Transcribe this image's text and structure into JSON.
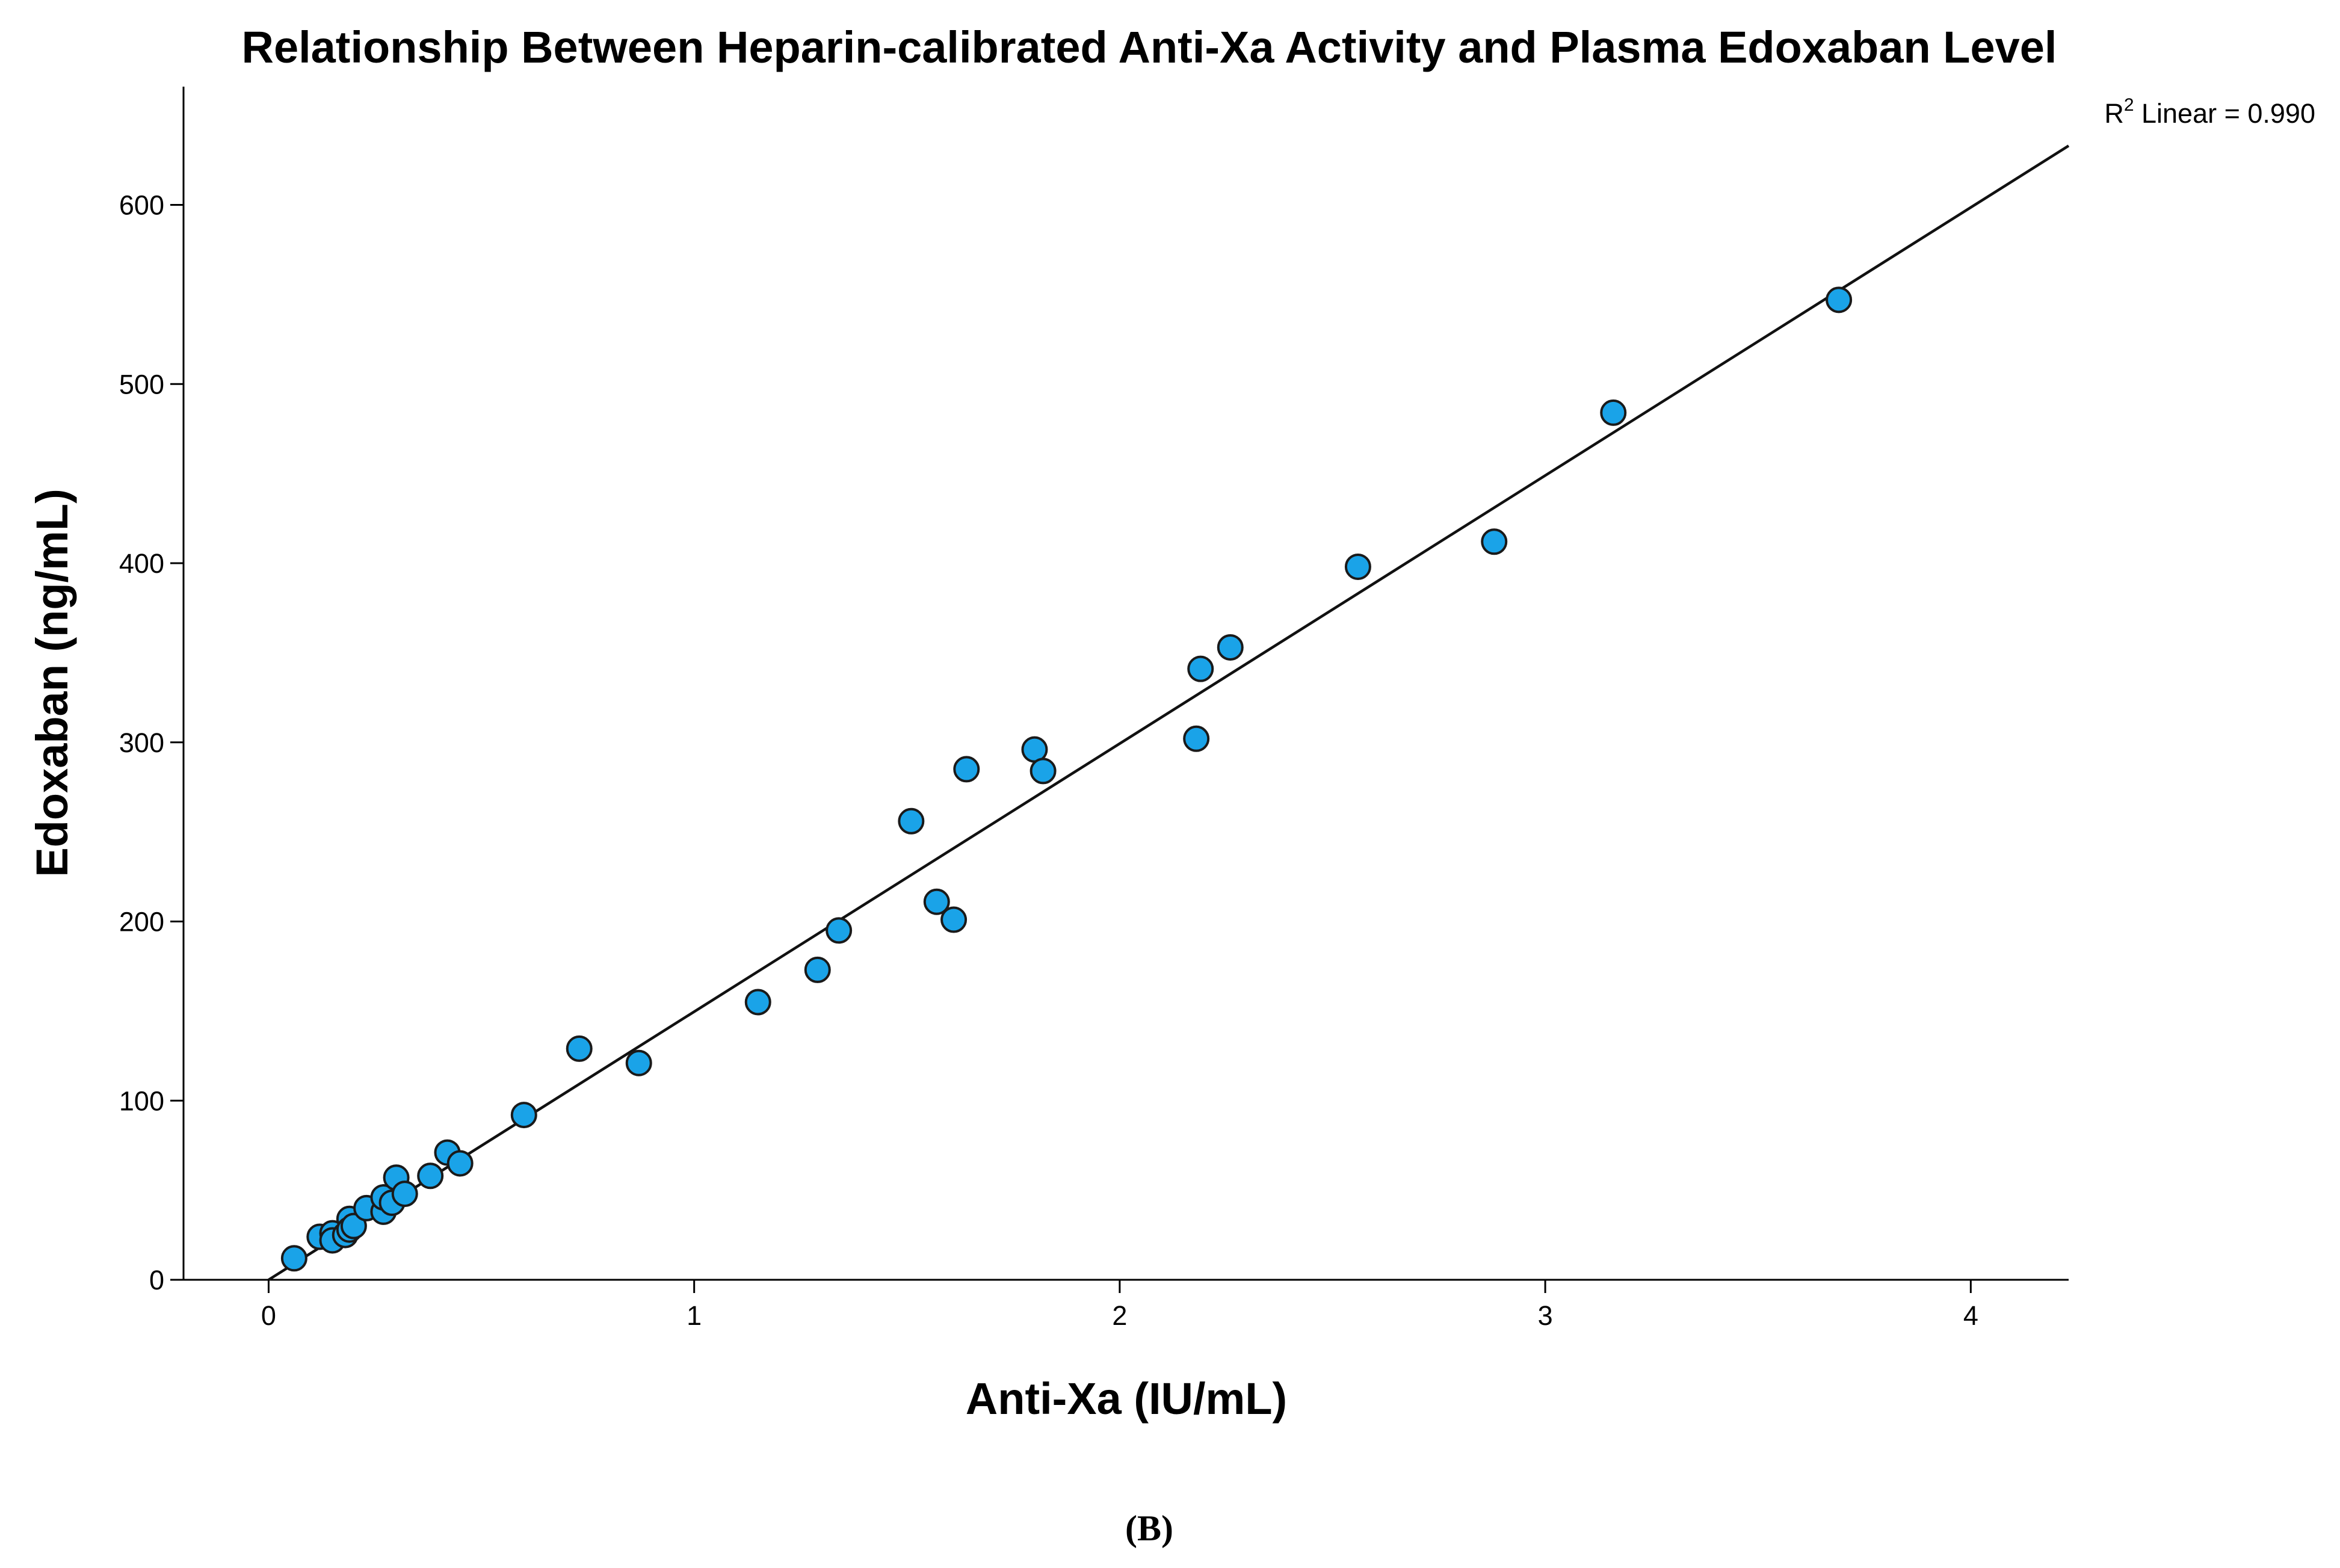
{
  "chart_data": {
    "type": "scatter",
    "title": "Relationship Between Heparin-calibrated Anti-Xa Activity and Plasma Edoxaban Level",
    "xlabel": "Anti-Xa (IU/mL)",
    "ylabel": "Edoxaban (ng/mL)",
    "xlim": [
      -0.2,
      4.23
    ],
    "ylim": [
      0,
      666
    ],
    "x_ticks": [
      0,
      1,
      2,
      3,
      4
    ],
    "y_ticks": [
      0,
      100,
      200,
      300,
      400,
      500,
      600
    ],
    "grid": false,
    "marker_color": "#1aa3e8",
    "marker_edge_color": "#1a1a1a",
    "points": [
      {
        "x": 0.06,
        "y": 12
      },
      {
        "x": 0.12,
        "y": 24
      },
      {
        "x": 0.15,
        "y": 26
      },
      {
        "x": 0.15,
        "y": 22
      },
      {
        "x": 0.18,
        "y": 25
      },
      {
        "x": 0.19,
        "y": 34
      },
      {
        "x": 0.19,
        "y": 28
      },
      {
        "x": 0.2,
        "y": 30
      },
      {
        "x": 0.23,
        "y": 40
      },
      {
        "x": 0.27,
        "y": 38
      },
      {
        "x": 0.27,
        "y": 46
      },
      {
        "x": 0.29,
        "y": 43
      },
      {
        "x": 0.3,
        "y": 57
      },
      {
        "x": 0.32,
        "y": 48
      },
      {
        "x": 0.38,
        "y": 58
      },
      {
        "x": 0.42,
        "y": 71
      },
      {
        "x": 0.45,
        "y": 65
      },
      {
        "x": 0.6,
        "y": 92
      },
      {
        "x": 0.73,
        "y": 129
      },
      {
        "x": 0.87,
        "y": 121
      },
      {
        "x": 1.15,
        "y": 155
      },
      {
        "x": 1.29,
        "y": 173
      },
      {
        "x": 1.34,
        "y": 195
      },
      {
        "x": 1.51,
        "y": 256
      },
      {
        "x": 1.57,
        "y": 211
      },
      {
        "x": 1.61,
        "y": 201
      },
      {
        "x": 1.64,
        "y": 285
      },
      {
        "x": 1.8,
        "y": 296
      },
      {
        "x": 1.82,
        "y": 284
      },
      {
        "x": 2.18,
        "y": 302
      },
      {
        "x": 2.19,
        "y": 341
      },
      {
        "x": 2.26,
        "y": 353
      },
      {
        "x": 2.56,
        "y": 398
      },
      {
        "x": 2.88,
        "y": 412
      },
      {
        "x": 3.16,
        "y": 484
      },
      {
        "x": 3.69,
        "y": 547
      }
    ],
    "fit_line": {
      "type": "linear",
      "start": {
        "x": 0.0,
        "y": 0
      },
      "end": {
        "x": 4.23,
        "y": 633
      },
      "label_prefix": "R",
      "label_sup": "2",
      "label_rest": " Linear = 0.990"
    }
  },
  "caption": "(B)"
}
